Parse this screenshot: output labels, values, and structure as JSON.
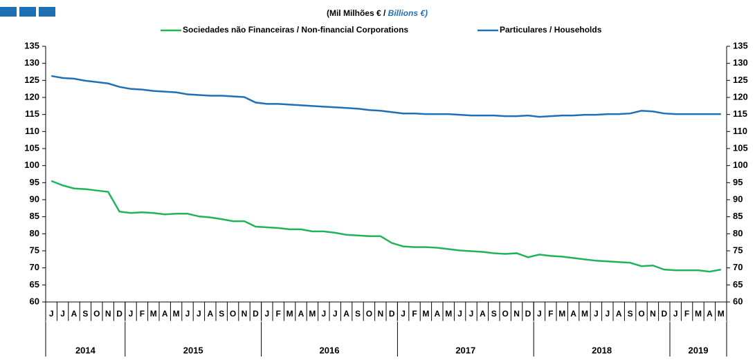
{
  "chart_data": {
    "type": "line",
    "subtitle": [
      "(Mil Milhões € / ",
      "Billions €)"
    ],
    "categories": [
      "J",
      "J",
      "A",
      "S",
      "O",
      "N",
      "D",
      "J",
      "F",
      "M",
      "A",
      "M",
      "J",
      "J",
      "A",
      "S",
      "O",
      "N",
      "D",
      "J",
      "F",
      "M",
      "A",
      "M",
      "J",
      "J",
      "A",
      "S",
      "O",
      "N",
      "D",
      "J",
      "F",
      "M",
      "A",
      "M",
      "J",
      "J",
      "A",
      "S",
      "O",
      "N",
      "D",
      "J",
      "F",
      "M",
      "A",
      "M",
      "J",
      "J",
      "A",
      "S",
      "O",
      "N",
      "D",
      "J",
      "F",
      "M",
      "A",
      "M"
    ],
    "years": [
      "2014",
      "2015",
      "2016",
      "2017",
      "2018",
      "2019"
    ],
    "series": [
      {
        "name": "Sociedades não Financeiras / Non-financial Corporations",
        "color": "#1fb35a",
        "values": [
          95.5,
          94.2,
          93.3,
          93.1,
          92.7,
          92.3,
          86.5,
          86.1,
          86.3,
          86.1,
          85.7,
          85.9,
          85.9,
          85.1,
          84.8,
          84.3,
          83.7,
          83.7,
          82.1,
          81.9,
          81.7,
          81.3,
          81.3,
          80.7,
          80.7,
          80.3,
          79.7,
          79.5,
          79.3,
          79.3,
          77.3,
          76.3,
          76.1,
          76.1,
          75.9,
          75.5,
          75.1,
          74.9,
          74.7,
          74.3,
          74.1,
          74.3,
          73.1,
          73.9,
          73.5,
          73.3,
          72.9,
          72.5,
          72.1,
          71.9,
          71.7,
          71.5,
          70.5,
          70.7,
          69.5,
          69.3,
          69.3,
          69.3,
          68.9,
          69.5
        ]
      },
      {
        "name": "Particulares / Households",
        "color": "#1f6fb4",
        "values": [
          126.3,
          125.7,
          125.5,
          124.9,
          124.5,
          124.1,
          123.1,
          122.5,
          122.3,
          121.9,
          121.7,
          121.5,
          120.9,
          120.7,
          120.5,
          120.5,
          120.3,
          120.1,
          118.5,
          118.1,
          118.1,
          117.9,
          117.7,
          117.5,
          117.3,
          117.1,
          116.9,
          116.7,
          116.3,
          116.1,
          115.7,
          115.3,
          115.3,
          115.1,
          115.1,
          115.1,
          114.9,
          114.7,
          114.7,
          114.7,
          114.5,
          114.5,
          114.7,
          114.3,
          114.5,
          114.7,
          114.7,
          114.9,
          114.9,
          115.1,
          115.1,
          115.3,
          116.1,
          115.9,
          115.3,
          115.1,
          115.1,
          115.1,
          115.1,
          115.1
        ]
      }
    ],
    "ylim": [
      60,
      135
    ],
    "yticks": [
      60,
      65,
      70,
      75,
      80,
      85,
      90,
      95,
      100,
      105,
      110,
      115,
      120,
      125,
      130,
      135
    ]
  }
}
